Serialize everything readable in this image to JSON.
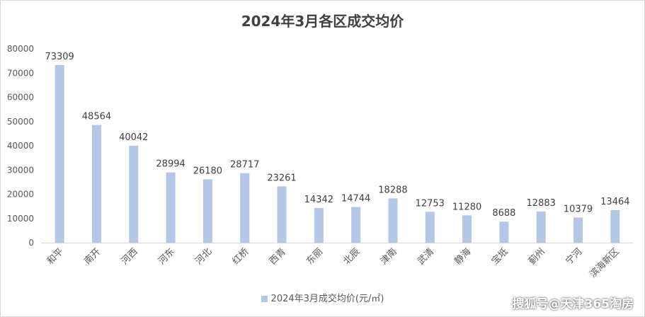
{
  "chart_data": {
    "type": "bar",
    "title": "2024年3月各区成交均价",
    "categories": [
      "和平",
      "南开",
      "河西",
      "河东",
      "河北",
      "红桥",
      "西青",
      "东丽",
      "北辰",
      "津南",
      "武清",
      "静海",
      "宝坻",
      "蓟州",
      "宁河",
      "滨海新区"
    ],
    "series": [
      {
        "name": "2024年3月成交均价(元/㎡)",
        "values": [
          73309,
          48564,
          40042,
          28994,
          26180,
          28717,
          23261,
          14342,
          14744,
          18288,
          12753,
          11280,
          8688,
          12883,
          10379,
          13464
        ]
      }
    ],
    "xlabel": "",
    "ylabel": "",
    "ylim": [
      0,
      80000
    ],
    "yticks": [
      0,
      10000,
      20000,
      30000,
      40000,
      50000,
      60000,
      70000,
      80000
    ],
    "grid": false,
    "legend": "bottom",
    "bar_color": "#b4c7e7"
  },
  "watermark": "搜狐号@天津365淘房"
}
